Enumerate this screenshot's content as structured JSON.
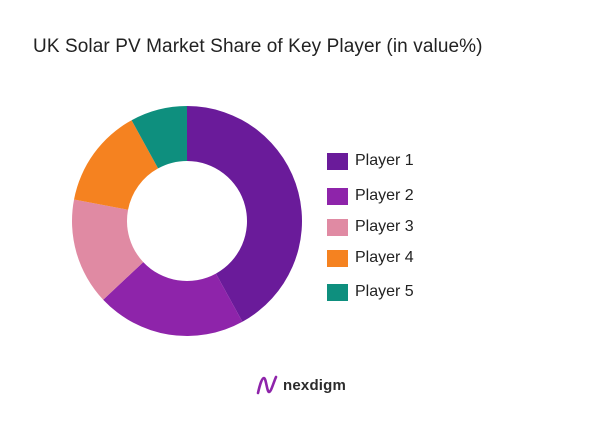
{
  "title": "UK Solar PV Market Share of Key Player (in value%)",
  "chart_data": {
    "type": "pie",
    "style": "donut",
    "title": "UK Solar PV Market Share of Key Player (in value%)",
    "categories": [
      "Player 1",
      "Player 2",
      "Player 3",
      "Player 4",
      "Player 5"
    ],
    "values": [
      42,
      21,
      15,
      14,
      8
    ],
    "colors": [
      "#6A1B9A",
      "#8E24AA",
      "#E08AA3",
      "#F58220",
      "#0E8F7E"
    ],
    "legend_position": "right"
  },
  "brand": {
    "name": "nexdigm",
    "color": "#8E24AA"
  }
}
